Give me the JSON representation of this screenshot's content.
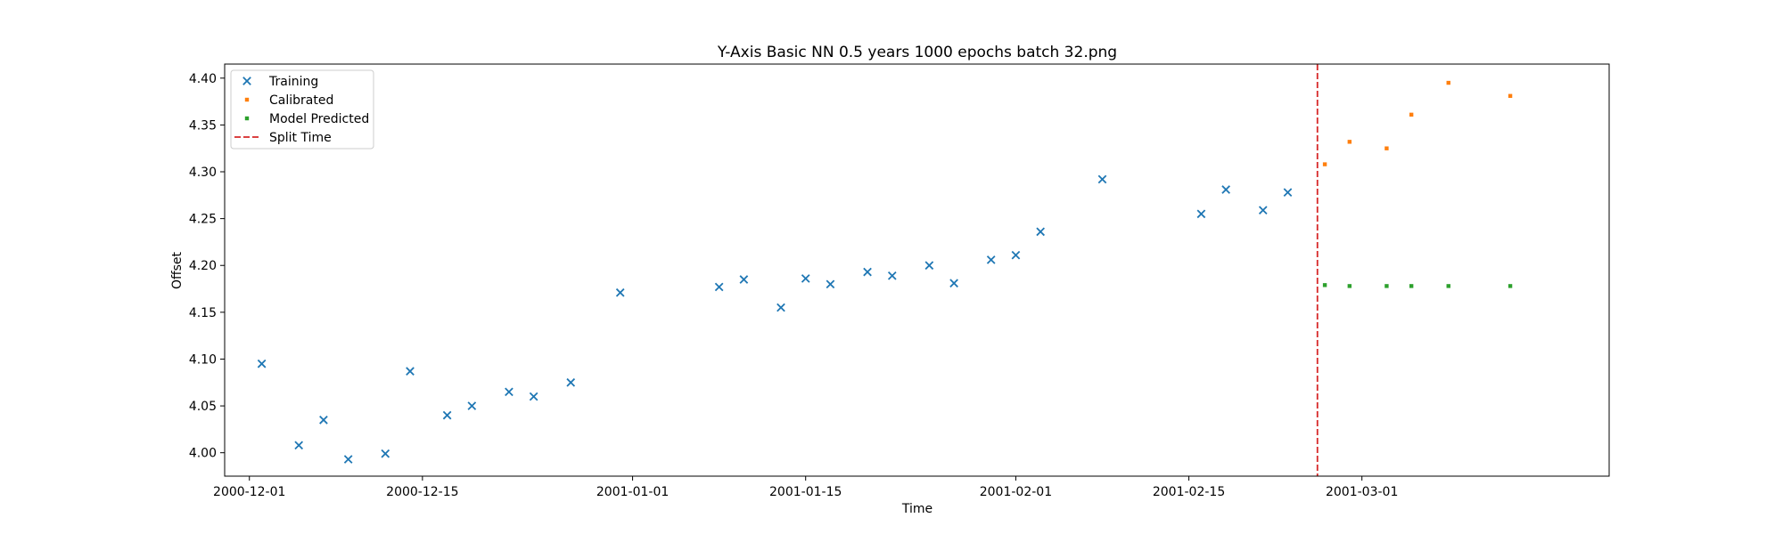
{
  "chart_data": {
    "type": "scatter",
    "title": "Y-Axis Basic NN 0.5 years 1000 epochs batch 32.png",
    "xlabel": "Time",
    "ylabel": "Offset",
    "x_axis_type": "date",
    "xlim": [
      "2000-11-29",
      "2001-03-21"
    ],
    "ylim": [
      3.975,
      4.415
    ],
    "x_ticks": [
      "2000-12-01",
      "2000-12-15",
      "2001-01-01",
      "2001-01-15",
      "2001-02-01",
      "2001-02-15",
      "2001-03-01"
    ],
    "y_ticks": [
      4.0,
      4.05,
      4.1,
      4.15,
      4.2,
      4.25,
      4.3,
      4.35,
      4.4
    ],
    "y_tick_labels": [
      "4.00",
      "4.05",
      "4.10",
      "4.15",
      "4.20",
      "4.25",
      "4.30",
      "4.35",
      "4.40"
    ],
    "grid": false,
    "legend_position": "top-left",
    "series": [
      {
        "name": "Training",
        "marker": "x",
        "color": "#1f77b4",
        "points": [
          {
            "x": "2000-12-02",
            "y": 4.095
          },
          {
            "x": "2000-12-05",
            "y": 4.008
          },
          {
            "x": "2000-12-07",
            "y": 4.035
          },
          {
            "x": "2000-12-09",
            "y": 3.993
          },
          {
            "x": "2000-12-12",
            "y": 3.999
          },
          {
            "x": "2000-12-14",
            "y": 4.087
          },
          {
            "x": "2000-12-17",
            "y": 4.04
          },
          {
            "x": "2000-12-19",
            "y": 4.05
          },
          {
            "x": "2000-12-22",
            "y": 4.065
          },
          {
            "x": "2000-12-24",
            "y": 4.06
          },
          {
            "x": "2000-12-27",
            "y": 4.075
          },
          {
            "x": "2000-12-31",
            "y": 4.171
          },
          {
            "x": "2001-01-08",
            "y": 4.177
          },
          {
            "x": "2001-01-10",
            "y": 4.185
          },
          {
            "x": "2001-01-13",
            "y": 4.155
          },
          {
            "x": "2001-01-15",
            "y": 4.186
          },
          {
            "x": "2001-01-17",
            "y": 4.18
          },
          {
            "x": "2001-01-20",
            "y": 4.193
          },
          {
            "x": "2001-01-22",
            "y": 4.189
          },
          {
            "x": "2001-01-25",
            "y": 4.2
          },
          {
            "x": "2001-01-27",
            "y": 4.181
          },
          {
            "x": "2001-01-30",
            "y": 4.206
          },
          {
            "x": "2001-02-01",
            "y": 4.211
          },
          {
            "x": "2001-02-03",
            "y": 4.236
          },
          {
            "x": "2001-02-08",
            "y": 4.292
          },
          {
            "x": "2001-02-16",
            "y": 4.255
          },
          {
            "x": "2001-02-18",
            "y": 4.281
          },
          {
            "x": "2001-02-21",
            "y": 4.259
          },
          {
            "x": "2001-02-23",
            "y": 4.278
          }
        ]
      },
      {
        "name": "Calibrated",
        "marker": "square",
        "color": "#ff7f0e",
        "points": [
          {
            "x": "2001-02-26",
            "y": 4.308
          },
          {
            "x": "2001-02-28",
            "y": 4.332
          },
          {
            "x": "2001-03-03",
            "y": 4.325
          },
          {
            "x": "2001-03-05",
            "y": 4.361
          },
          {
            "x": "2001-03-08",
            "y": 4.395
          },
          {
            "x": "2001-03-13",
            "y": 4.381
          }
        ]
      },
      {
        "name": "Model Predicted",
        "marker": "square",
        "color": "#2ca02c",
        "points": [
          {
            "x": "2001-02-26",
            "y": 4.179
          },
          {
            "x": "2001-02-28",
            "y": 4.178
          },
          {
            "x": "2001-03-03",
            "y": 4.178
          },
          {
            "x": "2001-03-05",
            "y": 4.178
          },
          {
            "x": "2001-03-08",
            "y": 4.178
          },
          {
            "x": "2001-03-13",
            "y": 4.178
          }
        ]
      }
    ],
    "vlines": [
      {
        "name": "Split Time",
        "x": "2001-02-25.4",
        "color": "#d62728",
        "style": "dashed"
      }
    ]
  }
}
